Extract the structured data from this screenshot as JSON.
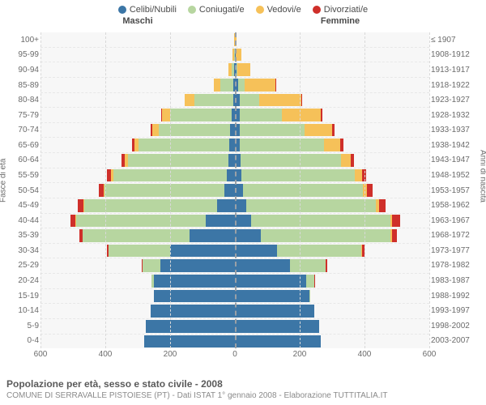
{
  "legend": [
    {
      "label": "Celibi/Nubili",
      "color": "#3c76a6"
    },
    {
      "label": "Coniugati/e",
      "color": "#b7d6a0"
    },
    {
      "label": "Vedovi/e",
      "color": "#f6c159"
    },
    {
      "label": "Divorziati/e",
      "color": "#cf2f2a"
    }
  ],
  "gender_labels": {
    "male": "Maschi",
    "female": "Femmine"
  },
  "axis_titles": {
    "left": "Fasce di età",
    "right": "Anni di nascita"
  },
  "xaxis": {
    "max": 600,
    "ticks": [
      600,
      400,
      200,
      0,
      200,
      400,
      600
    ]
  },
  "footer": {
    "title": "Popolazione per età, sesso e stato civile - 2008",
    "subtitle": "COMUNE DI SERRAVALLE PISTOIESE (PT) - Dati ISTAT 1° gennaio 2008 - Elaborazione TUTTITALIA.IT"
  },
  "rows": [
    {
      "age": "100+",
      "birth": "≤ 1907",
      "m": {
        "c": 0,
        "co": 0,
        "v": 3,
        "d": 0
      },
      "f": {
        "c": 0,
        "co": 0,
        "v": 5,
        "d": 0
      }
    },
    {
      "age": "95-99",
      "birth": "1908-1912",
      "m": {
        "c": 0,
        "co": 3,
        "v": 5,
        "d": 0
      },
      "f": {
        "c": 3,
        "co": 0,
        "v": 18,
        "d": 0
      }
    },
    {
      "age": "90-94",
      "birth": "1913-1917",
      "m": {
        "c": 2,
        "co": 8,
        "v": 10,
        "d": 0
      },
      "f": {
        "c": 4,
        "co": 4,
        "v": 40,
        "d": 0
      }
    },
    {
      "age": "85-89",
      "birth": "1918-1922",
      "m": {
        "c": 4,
        "co": 40,
        "v": 20,
        "d": 0
      },
      "f": {
        "c": 10,
        "co": 20,
        "v": 95,
        "d": 2
      }
    },
    {
      "age": "80-84",
      "birth": "1923-1927",
      "m": {
        "c": 6,
        "co": 120,
        "v": 28,
        "d": 2
      },
      "f": {
        "c": 14,
        "co": 60,
        "v": 130,
        "d": 3
      }
    },
    {
      "age": "75-79",
      "birth": "1928-1932",
      "m": {
        "c": 10,
        "co": 190,
        "v": 25,
        "d": 3
      },
      "f": {
        "c": 16,
        "co": 130,
        "v": 120,
        "d": 4
      }
    },
    {
      "age": "70-74",
      "birth": "1933-1937",
      "m": {
        "c": 14,
        "co": 220,
        "v": 20,
        "d": 5
      },
      "f": {
        "c": 16,
        "co": 200,
        "v": 85,
        "d": 6
      }
    },
    {
      "age": "65-69",
      "birth": "1938-1942",
      "m": {
        "c": 18,
        "co": 280,
        "v": 12,
        "d": 7
      },
      "f": {
        "c": 16,
        "co": 260,
        "v": 50,
        "d": 8
      }
    },
    {
      "age": "60-64",
      "birth": "1943-1947",
      "m": {
        "c": 20,
        "co": 310,
        "v": 10,
        "d": 10
      },
      "f": {
        "c": 18,
        "co": 310,
        "v": 30,
        "d": 10
      }
    },
    {
      "age": "55-59",
      "birth": "1948-1952",
      "m": {
        "c": 26,
        "co": 350,
        "v": 6,
        "d": 12
      },
      "f": {
        "c": 20,
        "co": 350,
        "v": 22,
        "d": 12
      }
    },
    {
      "age": "50-54",
      "birth": "1953-1957",
      "m": {
        "c": 32,
        "co": 370,
        "v": 4,
        "d": 14
      },
      "f": {
        "c": 24,
        "co": 370,
        "v": 14,
        "d": 16
      }
    },
    {
      "age": "45-49",
      "birth": "1958-1962",
      "m": {
        "c": 55,
        "co": 410,
        "v": 3,
        "d": 18
      },
      "f": {
        "c": 34,
        "co": 400,
        "v": 10,
        "d": 22
      }
    },
    {
      "age": "40-44",
      "birth": "1963-1967",
      "m": {
        "c": 90,
        "co": 400,
        "v": 2,
        "d": 16
      },
      "f": {
        "c": 50,
        "co": 430,
        "v": 6,
        "d": 24
      }
    },
    {
      "age": "35-39",
      "birth": "1968-1972",
      "m": {
        "c": 140,
        "co": 330,
        "v": 1,
        "d": 10
      },
      "f": {
        "c": 80,
        "co": 400,
        "v": 4,
        "d": 16
      }
    },
    {
      "age": "30-34",
      "birth": "1973-1977",
      "m": {
        "c": 200,
        "co": 190,
        "v": 0,
        "d": 5
      },
      "f": {
        "c": 130,
        "co": 260,
        "v": 2,
        "d": 8
      }
    },
    {
      "age": "25-29",
      "birth": "1978-1982",
      "m": {
        "c": 230,
        "co": 55,
        "v": 0,
        "d": 2
      },
      "f": {
        "c": 170,
        "co": 110,
        "v": 1,
        "d": 3
      }
    },
    {
      "age": "20-24",
      "birth": "1983-1987",
      "m": {
        "c": 250,
        "co": 8,
        "v": 0,
        "d": 0
      },
      "f": {
        "c": 220,
        "co": 24,
        "v": 0,
        "d": 1
      }
    },
    {
      "age": "15-19",
      "birth": "1988-1992",
      "m": {
        "c": 250,
        "co": 0,
        "v": 0,
        "d": 0
      },
      "f": {
        "c": 230,
        "co": 2,
        "v": 0,
        "d": 0
      }
    },
    {
      "age": "10-14",
      "birth": "1993-1997",
      "m": {
        "c": 260,
        "co": 0,
        "v": 0,
        "d": 0
      },
      "f": {
        "c": 245,
        "co": 0,
        "v": 0,
        "d": 0
      }
    },
    {
      "age": "5-9",
      "birth": "1998-2002",
      "m": {
        "c": 275,
        "co": 0,
        "v": 0,
        "d": 0
      },
      "f": {
        "c": 260,
        "co": 0,
        "v": 0,
        "d": 0
      }
    },
    {
      "age": "0-4",
      "birth": "2003-2007",
      "m": {
        "c": 280,
        "co": 0,
        "v": 0,
        "d": 0
      },
      "f": {
        "c": 265,
        "co": 0,
        "v": 0,
        "d": 0
      }
    }
  ]
}
